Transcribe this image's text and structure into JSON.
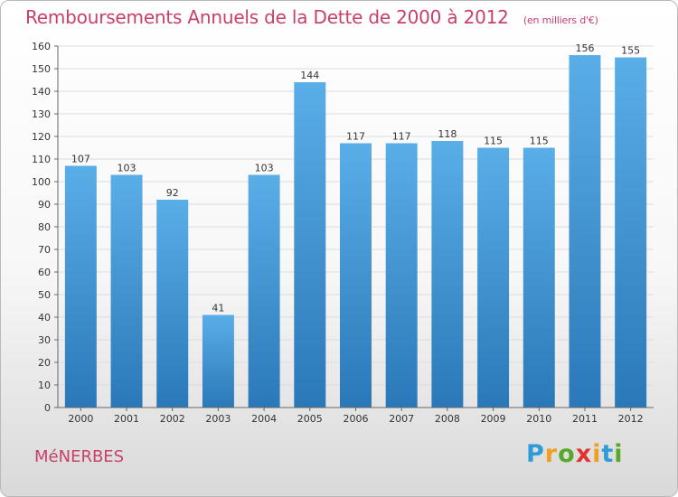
{
  "title": "Remboursements Annuels de la Dette de 2000 à 2012",
  "unit": "(en milliers d'€)",
  "commune": "MéNERBES",
  "logo": {
    "letters": [
      "P",
      "r",
      "o",
      "x",
      "i",
      "t",
      "i"
    ],
    "colors": [
      "#2f9bd8",
      "#f0a020",
      "#5aa829",
      "#e4302f",
      "#f0a020",
      "#2f9bd8",
      "#5aa829"
    ]
  },
  "colors": {
    "bar_top": "#5aaee8",
    "bar_bottom": "#2a78b8",
    "accent": "#c8406a"
  },
  "chart_data": {
    "type": "bar",
    "categories": [
      "2000",
      "2001",
      "2002",
      "2003",
      "2004",
      "2005",
      "2006",
      "2007",
      "2008",
      "2009",
      "2010",
      "2011",
      "2012"
    ],
    "values": [
      107,
      103,
      92,
      41,
      103,
      144,
      117,
      117,
      118,
      115,
      115,
      156,
      155
    ],
    "ylim": [
      0,
      160
    ],
    "yticks": [
      0,
      10,
      20,
      30,
      40,
      50,
      60,
      70,
      80,
      90,
      100,
      110,
      120,
      130,
      140,
      150,
      160
    ],
    "grid": true,
    "data_labels": true
  }
}
